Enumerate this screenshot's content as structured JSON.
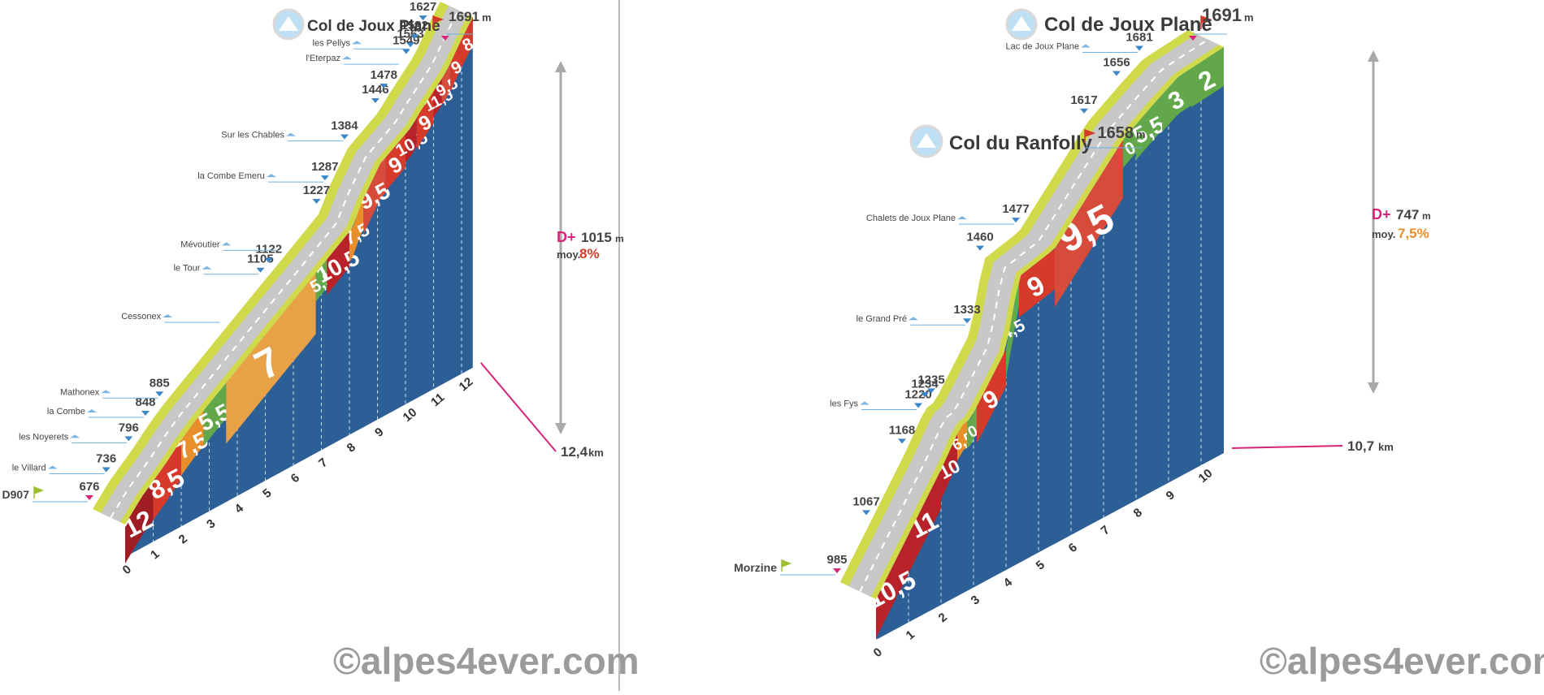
{
  "colors": {
    "ground": "#2c5f96",
    "road": "#c8c8c8",
    "verge": "#cfd94a",
    "divider": "#bdbdbd",
    "pin": "#3a86c7",
    "accent_pink": "#d6247a",
    "accent_red": "#d63a2a",
    "accent_orange": "#e88f2c",
    "grade_palette": {
      "0": "#62a84b",
      "2": "#62a84b",
      "3": "#62a84b",
      "4.5": "#62a84b",
      "5": "#62a84b",
      "5.5": "#62a84b",
      "6.5": "#e88f2c",
      "7": "#e8a245",
      "7.5": "#e88f2c",
      "8": "#d63a2a",
      "8.5": "#d63a2a",
      "9": "#d63a2a",
      "9.5": "#d64b3a",
      "10": "#b8232a",
      "10.5": "#b8232a",
      "11": "#b8232a",
      "11.5": "#b8232a",
      "12": "#a11d24"
    }
  },
  "chart_data": [
    {
      "type": "area",
      "title": "Col de Joux Plane",
      "summit_alt": "1691",
      "summit_unit": "m",
      "start_label": "D907",
      "gain_label": "D+",
      "gain_value": "1015",
      "gain_unit": "m",
      "avg_label": "moy.",
      "avg_value": "8%",
      "distance_label": "12,4",
      "distance_unit": "km",
      "km_ticks": [
        "0",
        "1",
        "2",
        "3",
        "4",
        "5",
        "6",
        "7",
        "8",
        "9",
        "10",
        "11",
        "12"
      ],
      "grades": [
        {
          "km_from": 0,
          "km_to": 1,
          "label": "12",
          "value": 12
        },
        {
          "km_from": 1,
          "km_to": 2,
          "label": "8,5",
          "value": 8.5
        },
        {
          "km_from": 2,
          "km_to": 2.8,
          "label": "7,5",
          "value": 7.5
        },
        {
          "km_from": 2.8,
          "km_to": 3.6,
          "label": "5,5",
          "value": 5.5
        },
        {
          "km_from": 3.6,
          "km_to": 6.8,
          "label": "7",
          "value": 7
        },
        {
          "km_from": 6.8,
          "km_to": 7.2,
          "label": "5,5",
          "value": 5.5
        },
        {
          "km_from": 7.2,
          "km_to": 8,
          "label": "10,5",
          "value": 10.5
        },
        {
          "km_from": 8,
          "km_to": 8.5,
          "label": "7,5",
          "value": 7.5
        },
        {
          "km_from": 8.5,
          "km_to": 9.3,
          "label": "9,5",
          "value": 9.5
        },
        {
          "km_from": 9.3,
          "km_to": 10,
          "label": "9",
          "value": 9
        },
        {
          "km_from": 10,
          "km_to": 10.4,
          "label": "10,5",
          "value": 10.5
        },
        {
          "km_from": 10.4,
          "km_to": 11,
          "label": "9",
          "value": 9
        },
        {
          "km_from": 11,
          "km_to": 11.3,
          "label": "11,5",
          "value": 11.5
        },
        {
          "km_from": 11.3,
          "km_to": 11.6,
          "label": "9,5",
          "value": 9.5
        },
        {
          "km_from": 11.6,
          "km_to": 12,
          "label": "9",
          "value": 9
        },
        {
          "km_from": 12,
          "km_to": 12.4,
          "label": "8",
          "value": 8
        }
      ],
      "waypoints": [
        {
          "km": 0,
          "alt": "676",
          "place": "D907"
        },
        {
          "km": 0.6,
          "alt": "736",
          "place": "le Villard"
        },
        {
          "km": 1.4,
          "alt": "796",
          "place": "les Noyerets"
        },
        {
          "km": 2,
          "alt": "848",
          "place": "la Combe"
        },
        {
          "km": 2.5,
          "alt": "885",
          "place": "Mathonex"
        },
        {
          "km": 4.7,
          "alt": "",
          "place": "Cessonex"
        },
        {
          "km": 6.1,
          "alt": "1105",
          "place": "le Tour"
        },
        {
          "km": 6.4,
          "alt": "1122",
          "place": ""
        },
        {
          "km": 6.8,
          "alt": "",
          "place": "Mévoutier"
        },
        {
          "km": 8.1,
          "alt": "1227",
          "place": ""
        },
        {
          "km": 8.4,
          "alt": "1287",
          "place": "la Combe Emeru"
        },
        {
          "km": 9.1,
          "alt": "1384",
          "place": "Sur les Chables"
        },
        {
          "km": 10.2,
          "alt": "1446",
          "place": ""
        },
        {
          "km": 10.5,
          "alt": "1478",
          "place": ""
        },
        {
          "km": 11.1,
          "alt": "",
          "place": "l'Eterpaz"
        },
        {
          "km": 11.3,
          "alt": "1549",
          "place": ""
        },
        {
          "km": 11.45,
          "alt": "1563",
          "place": "les Pellys"
        },
        {
          "km": 11.6,
          "alt": "1582",
          "place": ""
        },
        {
          "km": 11.9,
          "alt": "1627",
          "place": ""
        },
        {
          "km": 12.4,
          "alt": "1691",
          "place": "Col de Joux Plane"
        }
      ],
      "watermark": "©alpes4ever.com"
    },
    {
      "type": "area",
      "title": "Col de Joux Plane",
      "summit_alt": "1691",
      "summit_unit": "m",
      "intermediate_title": "Col du Ranfolly",
      "intermediate_alt": "1658",
      "intermediate_unit": "m",
      "start_label": "Morzine",
      "gain_label": "D+",
      "gain_value": "747",
      "gain_unit": "m",
      "avg_label": "moy.",
      "avg_value": "7,5%",
      "distance_label": "10,7",
      "distance_unit": "km",
      "km_ticks": [
        "0",
        "1",
        "2",
        "3",
        "4",
        "5",
        "6",
        "7",
        "8",
        "9",
        "10"
      ],
      "grades": [
        {
          "km_from": 0,
          "km_to": 1,
          "label": "10,5",
          "value": 10.5
        },
        {
          "km_from": 1,
          "km_to": 2,
          "label": "11",
          "value": 11
        },
        {
          "km_from": 2,
          "km_to": 2.5,
          "label": "10",
          "value": 10
        },
        {
          "km_from": 2.5,
          "km_to": 2.8,
          "label": "6,5",
          "value": 6.5
        },
        {
          "km_from": 2.8,
          "km_to": 3.1,
          "label": "0",
          "value": 0
        },
        {
          "km_from": 3.1,
          "km_to": 4,
          "label": "9",
          "value": 9
        },
        {
          "km_from": 4,
          "km_to": 4.4,
          "label": "4,5",
          "value": 4.5
        },
        {
          "km_from": 4.4,
          "km_to": 5.5,
          "label": "9",
          "value": 9
        },
        {
          "km_from": 5.5,
          "km_to": 7.6,
          "label": "9,5",
          "value": 9.5
        },
        {
          "km_from": 7.6,
          "km_to": 8,
          "label": "0",
          "value": 0
        },
        {
          "km_from": 8,
          "km_to": 8.8,
          "label": "5,5",
          "value": 5.5
        },
        {
          "km_from": 8.8,
          "km_to": 9.7,
          "label": "3",
          "value": 3
        },
        {
          "km_from": 9.7,
          "km_to": 10.7,
          "label": "2",
          "value": 2
        }
      ],
      "waypoints": [
        {
          "km": 0,
          "alt": "985",
          "place": "Morzine"
        },
        {
          "km": 0.9,
          "alt": "1067",
          "place": ""
        },
        {
          "km": 2,
          "alt": "1168",
          "place": ""
        },
        {
          "km": 2.5,
          "alt": "1220",
          "place": "les Fys"
        },
        {
          "km": 2.7,
          "alt": "1234",
          "place": ""
        },
        {
          "km": 2.9,
          "alt": "1235",
          "place": ""
        },
        {
          "km": 4,
          "alt": "1333",
          "place": "le Grand Pré"
        },
        {
          "km": 4.4,
          "alt": "1460",
          "place": ""
        },
        {
          "km": 5.5,
          "alt": "1477",
          "place": "Chalets de Joux Plane"
        },
        {
          "km": 7.6,
          "alt": "1617",
          "place": ""
        },
        {
          "km": 8.6,
          "alt": "1656",
          "place": ""
        },
        {
          "km": 9.3,
          "alt": "1681",
          "place": "Lac de Joux Plane"
        },
        {
          "km": 10.7,
          "alt": "1691",
          "place": "Col de Joux Plane"
        }
      ],
      "watermark": "©alpes4ever.com"
    }
  ]
}
